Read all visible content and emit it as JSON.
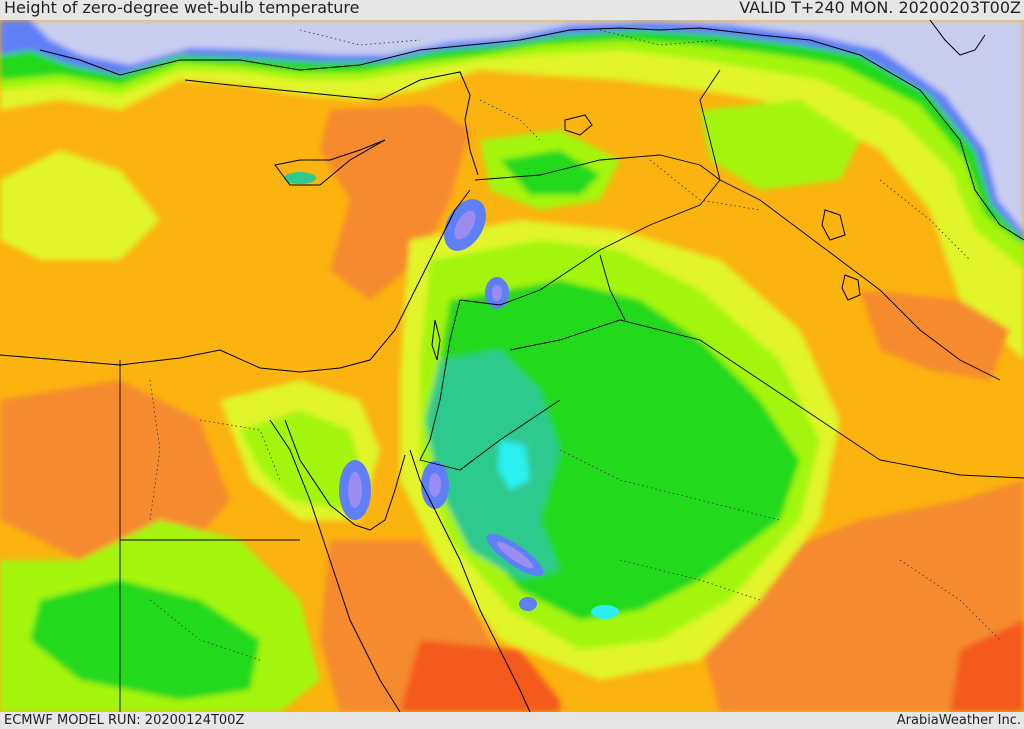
{
  "header": {
    "title": "Height of zero-degree wet-bulb temperature",
    "valid": "VALID T+240 MON. 20200203T00Z"
  },
  "footer": {
    "model_run": "ECMWF MODEL RUN: 20200124T00Z",
    "credit": "ArabiaWeather Inc."
  },
  "legend_colors": {
    "sea": "#c8cdef",
    "orange": "#fbb30f",
    "dark_orange": "#f58a2e",
    "red_orange": "#f45a1e",
    "yellow": "#e1f52a",
    "lime": "#a4f50c",
    "green": "#23d91e",
    "teal": "#2ec98d",
    "cyan": "#2cf0f0",
    "blue": "#5f7ff7",
    "violet": "#9a8cf0",
    "border": "#000000"
  }
}
